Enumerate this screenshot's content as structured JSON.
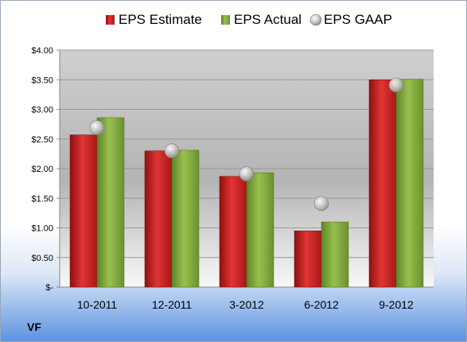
{
  "chart_data": {
    "type": "bar",
    "categories": [
      "10-2011",
      "12-2011",
      "3-2012",
      "6-2012",
      "9-2012"
    ],
    "series": [
      {
        "name": "EPS Estimate",
        "kind": "bar",
        "color": "#d42a2a",
        "values": [
          2.57,
          2.3,
          1.87,
          0.95,
          3.5
        ]
      },
      {
        "name": "EPS Actual",
        "kind": "bar",
        "color": "#86b03e",
        "values": [
          2.86,
          2.31,
          1.93,
          1.1,
          3.51
        ]
      },
      {
        "name": "EPS GAAP",
        "kind": "marker",
        "color": "#bdbdbd",
        "values": [
          2.69,
          2.3,
          1.91,
          1.41,
          3.41
        ]
      }
    ],
    "y_ticks": [
      "$-",
      "$0.50",
      "$1.00",
      "$1.50",
      "$2.00",
      "$2.50",
      "$3.00",
      "$3.50",
      "$4.00"
    ],
    "ylim": [
      0,
      4
    ],
    "grid": true,
    "legend_position": "top"
  },
  "ticker": "VF"
}
